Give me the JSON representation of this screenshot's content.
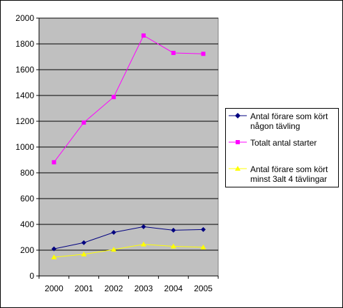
{
  "chart_data": {
    "type": "line",
    "categories": [
      "2000",
      "2001",
      "2002",
      "2003",
      "2004",
      "2005"
    ],
    "ylim": [
      0,
      2000
    ],
    "yticks": [
      0,
      200,
      400,
      600,
      800,
      1000,
      1200,
      1400,
      1600,
      1800,
      2000
    ],
    "ytick_labels": [
      "0",
      "200",
      "400",
      "600",
      "800",
      "1000",
      "1200",
      "1400",
      "1600",
      "1800",
      "2000"
    ],
    "grid": true,
    "plot_background": "#c0c0c0",
    "legend_position": "right",
    "series": [
      {
        "name": "Antal förare som kört någon tävling",
        "color": "#000080",
        "marker": "diamond",
        "values": [
          210,
          258,
          338,
          382,
          355,
          360
        ]
      },
      {
        "name": "Totalt antal starter",
        "color": "#ff00ff",
        "marker": "square",
        "values": [
          882,
          1190,
          1388,
          1865,
          1730,
          1723
        ]
      },
      {
        "name": "Antal förare som kört minst 3alt 4 tävlingar",
        "color": "#ffff00",
        "marker": "triangle",
        "values": [
          145,
          168,
          205,
          245,
          230,
          222
        ]
      }
    ]
  }
}
